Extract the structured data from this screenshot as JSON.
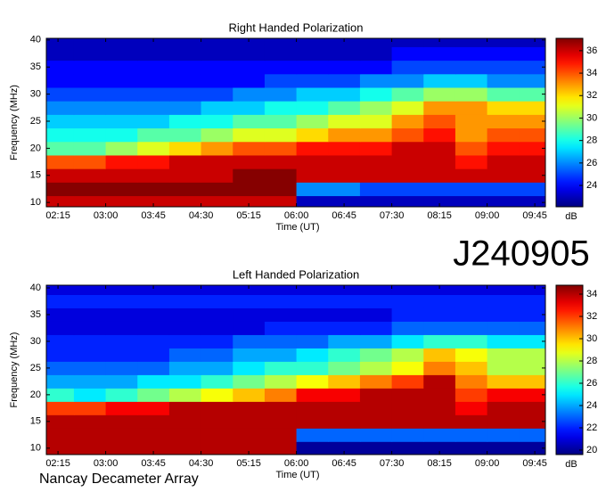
{
  "header": {
    "title": "J240905"
  },
  "footer": {
    "text": "Nancay Decameter Array"
  },
  "chart_data": [
    {
      "type": "heatmap",
      "title": "Right Handed Polarization",
      "xlabel": "Time (UT)",
      "ylabel": "Frequency (MHz)",
      "colorbar_label": "dB",
      "colormap": "jet",
      "x": [
        135,
        165,
        195,
        225,
        255,
        285,
        315,
        345,
        375,
        405,
        435,
        465,
        495,
        525,
        555,
        585
      ],
      "y": [
        10,
        12.5,
        15,
        17.5,
        20,
        22.5,
        25,
        27.5,
        30,
        32.5,
        35,
        37.5,
        40
      ],
      "z": [
        [
          36,
          36,
          36,
          36,
          36,
          36,
          36,
          36,
          23,
          23,
          23,
          23,
          23,
          23,
          23,
          23
        ],
        [
          37,
          37,
          37,
          37,
          37,
          37,
          37,
          37,
          26,
          26,
          25,
          25,
          25,
          25,
          25,
          25
        ],
        [
          36,
          36,
          36,
          36,
          36,
          36,
          37,
          37,
          36,
          36,
          36,
          36,
          36,
          36,
          36,
          36
        ],
        [
          34,
          34,
          35,
          35,
          36,
          36,
          36,
          36,
          36,
          36,
          36,
          36,
          36,
          35,
          36,
          36
        ],
        [
          29,
          29,
          30,
          31,
          32,
          33,
          34,
          34,
          35,
          35,
          35,
          36,
          36,
          34,
          35,
          35
        ],
        [
          28,
          28,
          28,
          29,
          29,
          30,
          31,
          31,
          32,
          33,
          33,
          34,
          35,
          33,
          34,
          34
        ],
        [
          27,
          27,
          27,
          27,
          28,
          28,
          29,
          29,
          30,
          31,
          31,
          33,
          34,
          33,
          33,
          33
        ],
        [
          26,
          26,
          26,
          26,
          26,
          27,
          27,
          28,
          28,
          29,
          30,
          31,
          33,
          33,
          32,
          32
        ],
        [
          25,
          25,
          25,
          25,
          25,
          25,
          26,
          26,
          27,
          27,
          28,
          29,
          30,
          30,
          29,
          29
        ],
        [
          24,
          24,
          24,
          24,
          24,
          24,
          24,
          25,
          25,
          25,
          26,
          26,
          27,
          27,
          26,
          26
        ],
        [
          24,
          24,
          24,
          24,
          24,
          24,
          24,
          24,
          24,
          24,
          24,
          25,
          25,
          25,
          25,
          25
        ],
        [
          23,
          23,
          23,
          23,
          23,
          23,
          23,
          23,
          23,
          23,
          23,
          24,
          24,
          24,
          24,
          24
        ],
        [
          23,
          23,
          23,
          23,
          23,
          23,
          23,
          23,
          23,
          23,
          23,
          23,
          23,
          23,
          23,
          23
        ]
      ],
      "xlim": [
        124,
        595
      ],
      "ylim": [
        9.2,
        40.3
      ],
      "clim": [
        22.1,
        37.1
      ],
      "xticks": [
        {
          "value": 135,
          "label": "02:15"
        },
        {
          "value": 180,
          "label": "03:00"
        },
        {
          "value": 225,
          "label": "03:45"
        },
        {
          "value": 270,
          "label": "04:30"
        },
        {
          "value": 315,
          "label": "05:15"
        },
        {
          "value": 360,
          "label": "06:00"
        },
        {
          "value": 405,
          "label": "06:45"
        },
        {
          "value": 450,
          "label": "07:30"
        },
        {
          "value": 495,
          "label": "08:15"
        },
        {
          "value": 540,
          "label": "09:00"
        },
        {
          "value": 585,
          "label": "09:45"
        }
      ],
      "yticks": [
        10,
        15,
        20,
        25,
        30,
        35,
        40
      ],
      "cticks": [
        24,
        26,
        28,
        30,
        32,
        34,
        36
      ]
    },
    {
      "type": "heatmap",
      "title": "Left Handed Polarization",
      "xlabel": "Time (UT)",
      "ylabel": "Frequency (MHz)",
      "colorbar_label": "dB",
      "colormap": "jet",
      "x": [
        135,
        165,
        195,
        225,
        255,
        285,
        315,
        345,
        375,
        405,
        435,
        465,
        495,
        525,
        555,
        585
      ],
      "y": [
        10,
        12.5,
        15,
        17.5,
        20,
        22.5,
        25,
        27.5,
        30,
        32.5,
        35,
        37.5,
        40
      ],
      "z": [
        [
          34,
          34,
          34,
          34,
          34,
          34,
          34,
          34,
          20,
          20,
          20,
          20,
          20,
          20,
          20,
          20
        ],
        [
          34,
          34,
          34,
          34,
          34,
          34,
          34,
          34,
          23,
          23,
          23,
          23,
          23,
          23,
          23,
          23
        ],
        [
          34,
          34,
          34,
          34,
          34,
          34,
          34,
          34,
          34,
          34,
          34,
          34,
          34,
          34,
          34,
          34
        ],
        [
          32,
          32,
          33,
          33,
          34,
          34,
          34,
          34,
          34,
          34,
          34,
          34,
          34,
          33,
          34,
          34
        ],
        [
          26,
          25,
          26,
          27,
          28,
          29,
          30,
          31,
          33,
          33,
          34,
          34,
          34,
          32,
          33,
          33
        ],
        [
          24,
          24,
          24,
          25,
          25,
          26,
          27,
          28,
          29,
          30,
          31,
          32,
          34,
          31,
          30,
          30
        ],
        [
          23,
          23,
          23,
          23,
          24,
          24,
          25,
          26,
          26,
          27,
          28,
          29,
          31,
          30,
          28,
          28
        ],
        [
          22,
          22,
          22,
          22,
          23,
          23,
          24,
          24,
          25,
          26,
          27,
          28,
          30,
          29,
          28,
          28
        ],
        [
          22,
          22,
          22,
          22,
          22,
          22,
          23,
          23,
          23,
          24,
          24,
          25,
          26,
          26,
          25,
          25
        ],
        [
          21,
          21,
          21,
          21,
          21,
          21,
          21,
          22,
          22,
          22,
          22,
          23,
          23,
          23,
          23,
          23
        ],
        [
          21,
          21,
          21,
          21,
          21,
          21,
          21,
          21,
          21,
          21,
          21,
          22,
          22,
          22,
          22,
          22
        ],
        [
          22,
          22,
          22,
          22,
          22,
          22,
          22,
          22,
          22,
          22,
          22,
          22,
          22,
          22,
          22,
          22
        ],
        [
          21,
          21,
          21,
          21,
          21,
          21,
          21,
          21,
          21,
          21,
          21,
          21,
          21,
          21,
          21,
          21
        ]
      ],
      "xlim": [
        124,
        595
      ],
      "ylim": [
        8.8,
        40.5
      ],
      "clim": [
        19.6,
        34.8
      ],
      "xticks": [
        {
          "value": 135,
          "label": "02:15"
        },
        {
          "value": 180,
          "label": "03:00"
        },
        {
          "value": 225,
          "label": "03:45"
        },
        {
          "value": 270,
          "label": "04:30"
        },
        {
          "value": 315,
          "label": "05:15"
        },
        {
          "value": 360,
          "label": "06:00"
        },
        {
          "value": 405,
          "label": "06:45"
        },
        {
          "value": 450,
          "label": "07:30"
        },
        {
          "value": 495,
          "label": "08:15"
        },
        {
          "value": 540,
          "label": "09:00"
        },
        {
          "value": 585,
          "label": "09:45"
        }
      ],
      "yticks": [
        10,
        15,
        20,
        25,
        30,
        35,
        40
      ],
      "cticks": [
        20,
        22,
        24,
        26,
        28,
        30,
        32,
        34
      ]
    }
  ]
}
